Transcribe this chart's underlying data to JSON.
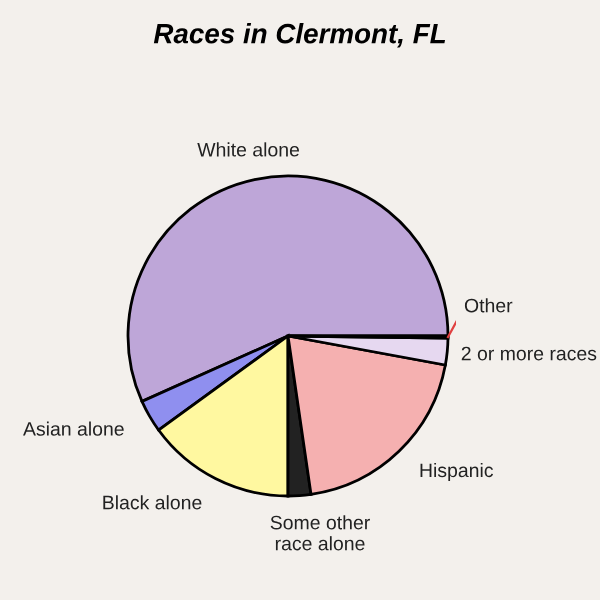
{
  "chart_data": {
    "type": "pie",
    "title": "Races in Clermont, FL",
    "categories": [
      "White alone",
      "Asian alone",
      "Black alone",
      "Some other race alone",
      "Hispanic",
      "2 or more races",
      "Other"
    ],
    "values": [
      56.7,
      3.3,
      15,
      2.3,
      19.8,
      2.7,
      0.2
    ],
    "colors": [
      "#bea6d8",
      "#8f8fef",
      "#fff8a0",
      "#222222",
      "#f5b0b0",
      "#e6d8f0",
      "#e04040"
    ]
  }
}
